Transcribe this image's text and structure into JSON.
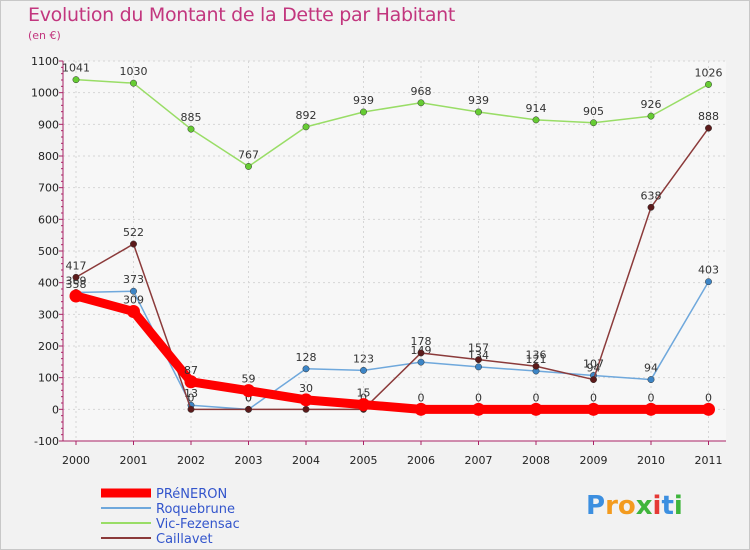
{
  "title": "Evolution du Montant de la Dette par Habitant",
  "subtitle": "(en €)",
  "logo": {
    "text": [
      "P",
      "r",
      "o",
      "x",
      "i",
      "t",
      "i"
    ],
    "colors": [
      "#3c8fe0",
      "#f39b1f",
      "#f39b1f",
      "#3fb53c",
      "#e53935",
      "#3c8fe0",
      "#3fb53c"
    ]
  },
  "chart_data": {
    "type": "line",
    "x": [
      "2000",
      "2001",
      "2002",
      "2003",
      "2004",
      "2005",
      "2006",
      "2007",
      "2008",
      "2009",
      "2010",
      "2011"
    ],
    "ylim": [
      -100,
      1100
    ],
    "yticks": [
      "-100",
      "0",
      "100",
      "200",
      "300",
      "400",
      "500",
      "600",
      "700",
      "800",
      "900",
      "1000",
      "1100"
    ],
    "grid": true,
    "legend_position": "bottom-left",
    "series": [
      {
        "name": "Vic-Fezensac",
        "color": "#99dd66",
        "marker_color": "#66cc33",
        "values": [
          1041,
          1030,
          885,
          767,
          892,
          939,
          968,
          939,
          914,
          905,
          926,
          1026
        ],
        "labels": [
          "1041",
          "1030",
          "885",
          "767",
          "892",
          "939",
          "968",
          "939",
          "914",
          "905",
          "926",
          "1026"
        ]
      },
      {
        "name": "Roquebrune",
        "color": "#6fa8dc",
        "marker_color": "#3d85c6",
        "values": [
          369,
          373,
          13,
          0,
          128,
          123,
          149,
          134,
          121,
          107,
          94,
          403
        ],
        "labels": [
          "369",
          "373",
          "13",
          "0",
          "128",
          "123",
          "149",
          "134",
          "121",
          "107",
          "94",
          "403"
        ]
      },
      {
        "name": "Caillavet",
        "color": "#8b3a3a",
        "marker_color": "#5c1a1a",
        "values": [
          417,
          522,
          0,
          0,
          0,
          0,
          178,
          157,
          136,
          94,
          638,
          888
        ],
        "labels": [
          "417",
          "522",
          "0",
          "0",
          "0",
          "0",
          "178",
          "157",
          "136",
          "94",
          "638",
          "888"
        ]
      },
      {
        "name": "PRéNERON",
        "color": "#ff0000",
        "marker_color": "#ff0000",
        "values": [
          358,
          309,
          87,
          59,
          30,
          15,
          0,
          0,
          0,
          0,
          0,
          0
        ],
        "labels": [
          "358",
          "309",
          "87",
          "59",
          "30",
          "15",
          "0",
          "0",
          "0",
          "0",
          "0",
          "0"
        ]
      }
    ]
  }
}
